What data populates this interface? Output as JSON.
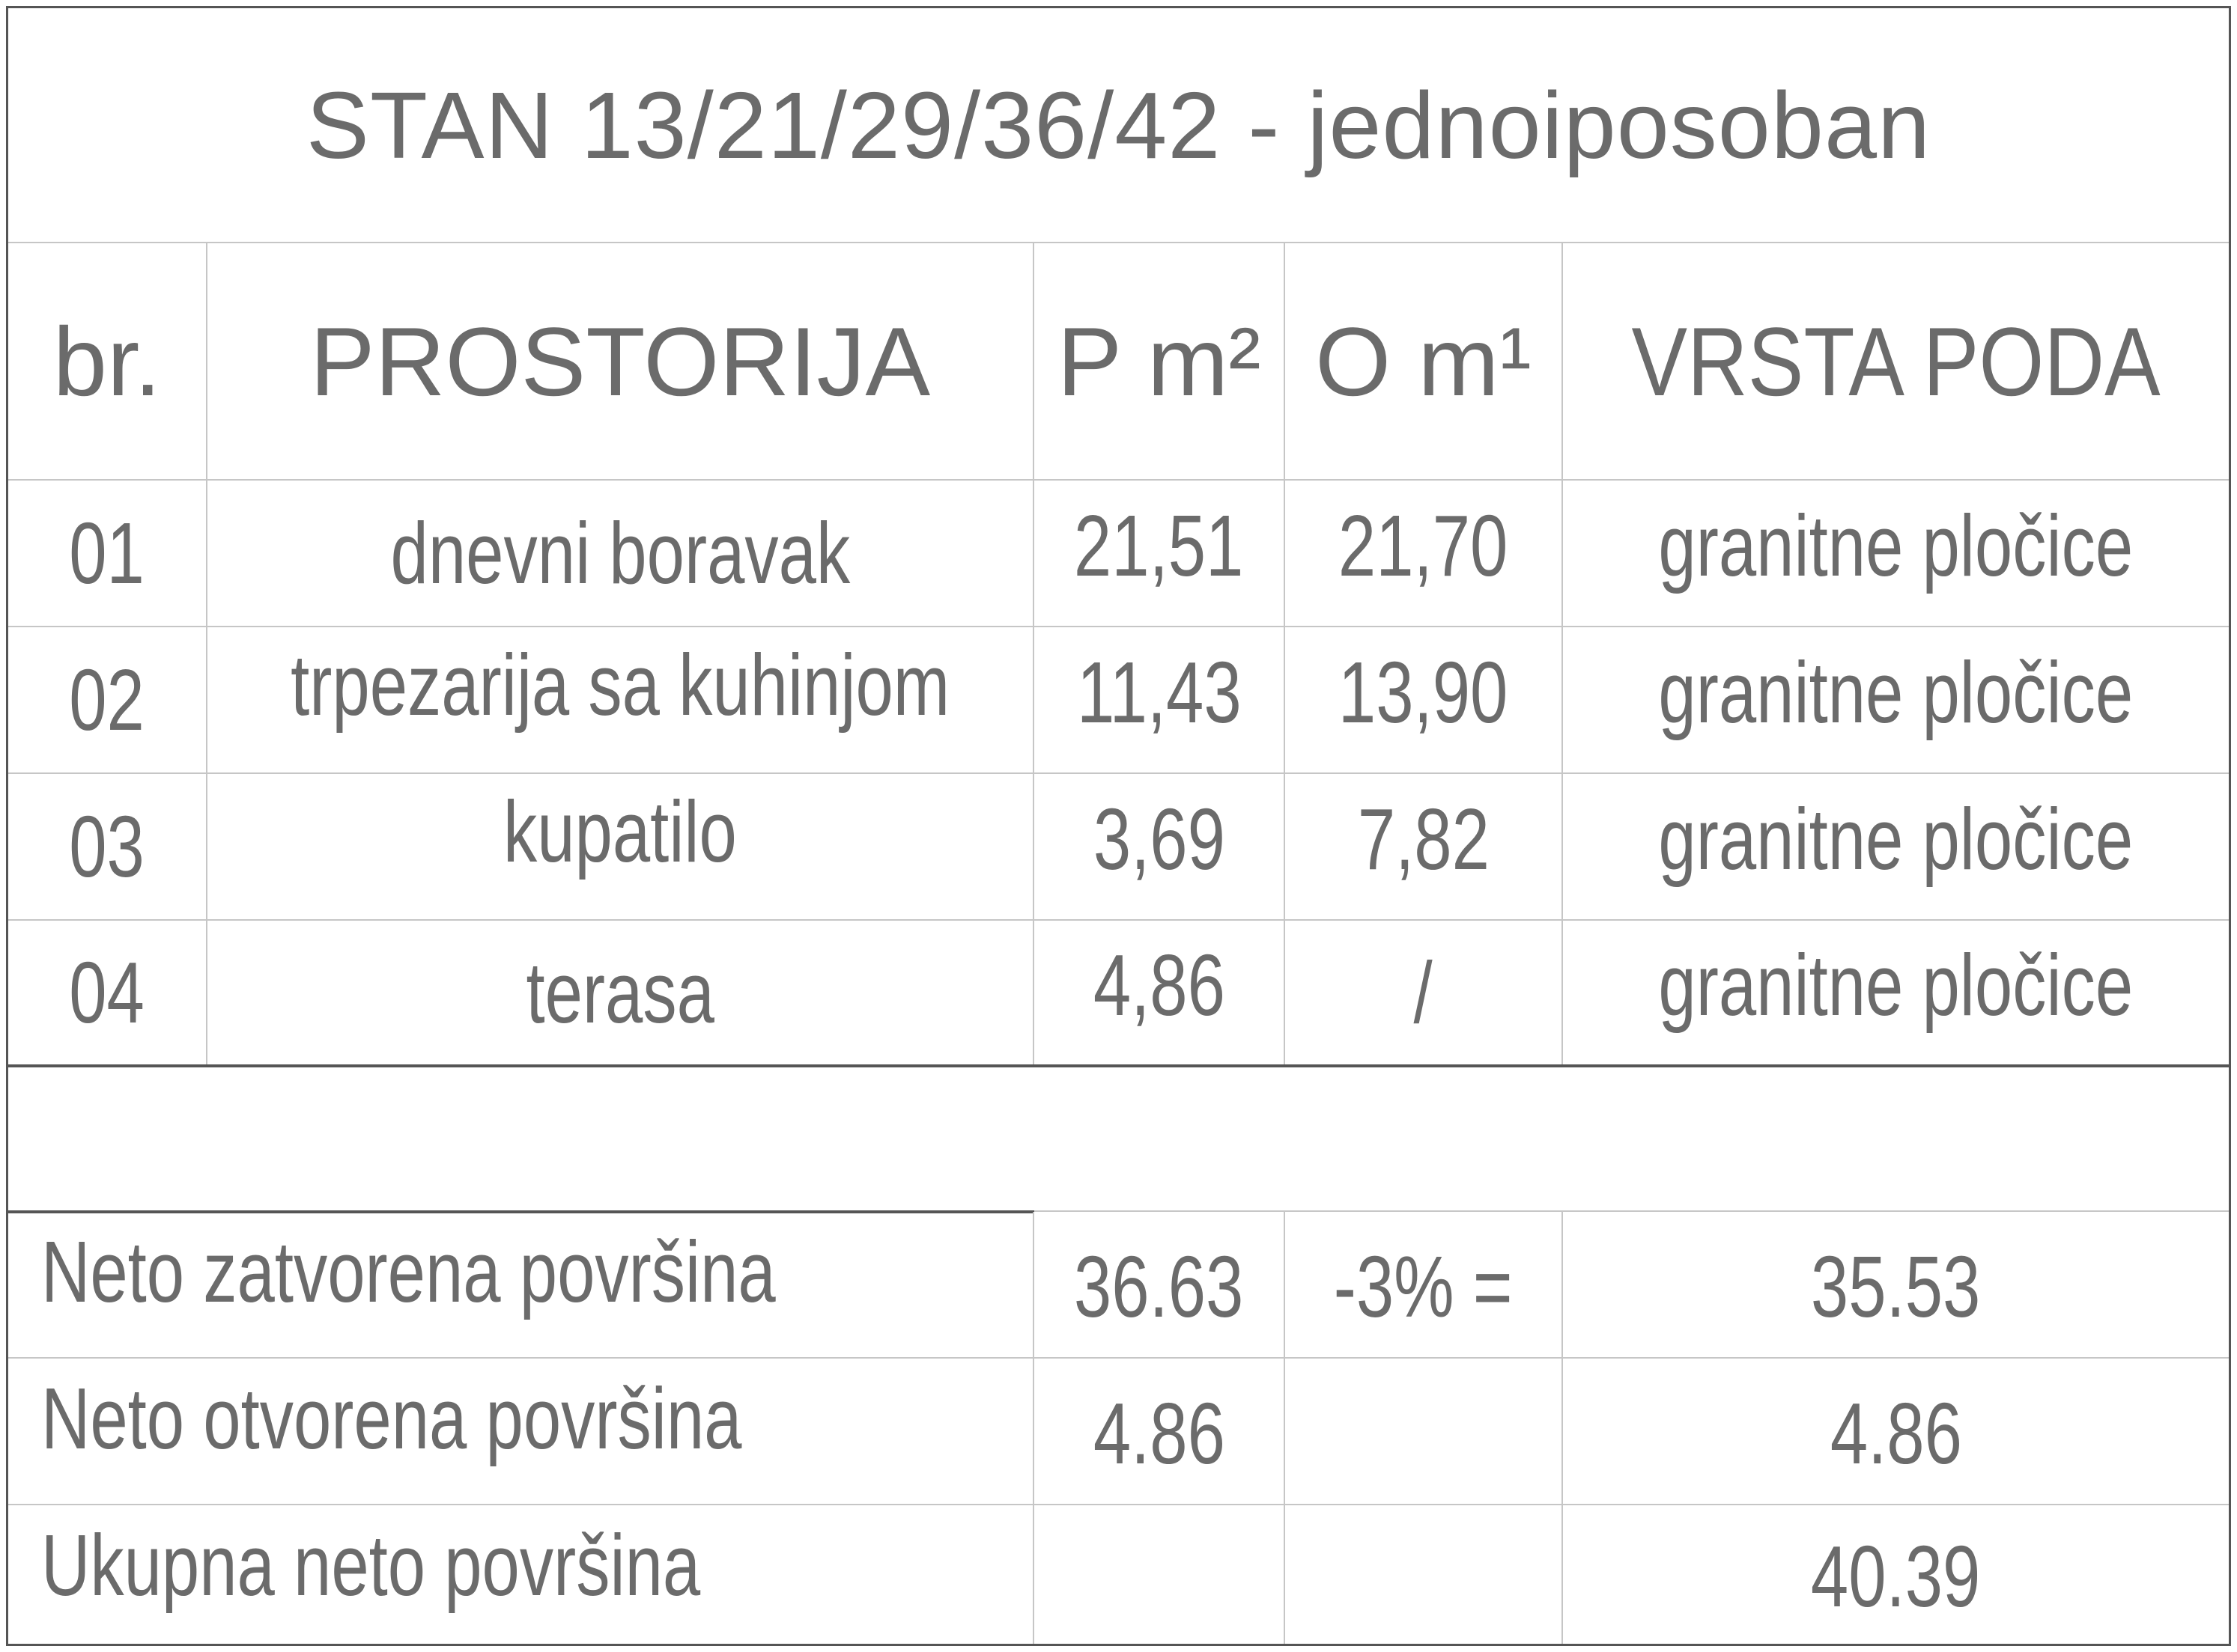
{
  "title": "STAN 13/21/29/36/42 - jednoiposoban",
  "headers": {
    "number": "br.",
    "room": "PROSTORIJA",
    "area": "P m²",
    "perimeter": "O m¹",
    "floor_type": "VRSTA PODA"
  },
  "rows": [
    {
      "number": "01",
      "room": "dnevni boravak",
      "area": "21,51",
      "perimeter": "21,70",
      "floor_type": "granitne pločice"
    },
    {
      "number": "02",
      "room": "trpezarija sa kuhinjom",
      "area": "11,43",
      "perimeter": "13,90",
      "floor_type": "granitne pločice"
    },
    {
      "number": "03",
      "room": "kupatilo",
      "area": "3,69",
      "perimeter": "7,82",
      "floor_type": "granitne pločice"
    },
    {
      "number": "04",
      "room": "terasa",
      "area": "4,86",
      "perimeter": "/",
      "floor_type": "granitne pločice"
    }
  ],
  "totals": [
    {
      "label": "Neto zatvorena površina",
      "area": "36.63",
      "modifier": "-3% =",
      "result": "35.53"
    },
    {
      "label": "Neto otvorena površina",
      "area": "4.86",
      "modifier": "",
      "result": "4.86"
    },
    {
      "label": "Ukupna neto površina",
      "area": "",
      "modifier": "",
      "result": "40.39"
    }
  ]
}
